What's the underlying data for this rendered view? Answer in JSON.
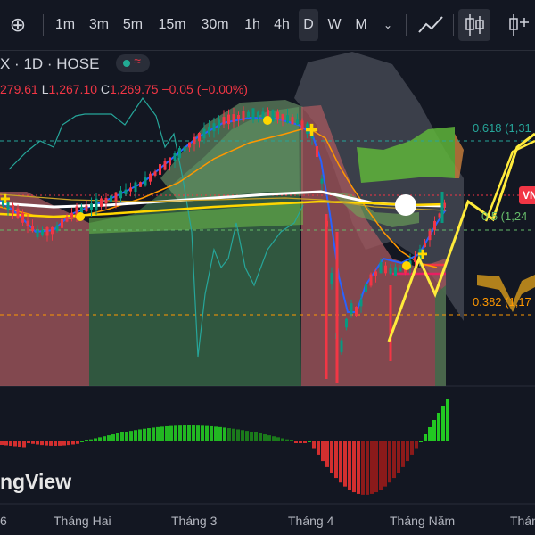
{
  "toolbar": {
    "add_label": "⊕",
    "intervals": [
      {
        "label": "1m",
        "active": false
      },
      {
        "label": "3m",
        "active": false
      },
      {
        "label": "5m",
        "active": false
      },
      {
        "label": "15m",
        "active": false
      },
      {
        "label": "30m",
        "active": false
      },
      {
        "label": "1h",
        "active": false
      },
      {
        "label": "4h",
        "active": false
      },
      {
        "label": "D",
        "active": true
      },
      {
        "label": "W",
        "active": false
      },
      {
        "label": "M",
        "active": false
      }
    ],
    "icons": [
      "chart-type-line-icon",
      "candles-icon",
      "indicators-icon"
    ]
  },
  "legend": {
    "symbol": "X · 1D · HOSE",
    "high_value": "279.61",
    "low_key": "L",
    "low_value": "1,267.10",
    "close_key": "C",
    "close_value": "1,269.75",
    "change": "−0.05 (−0.00%)"
  },
  "fib_levels": [
    {
      "label": "0.618 (1,31",
      "color": "#26a69a"
    },
    {
      "label": "0.5 (1,24",
      "color": "#66bb6a"
    },
    {
      "label": "0.382 (1,17",
      "color": "#ff9800"
    }
  ],
  "price_tag": "VN",
  "watermark": "ngView",
  "x_axis": [
    "6",
    "Tháng Hai",
    "Tháng 3",
    "Tháng 4",
    "Tháng Năm",
    "Tháng"
  ],
  "colors": {
    "up": "#089981",
    "down": "#f23645",
    "background": "#131722"
  }
}
